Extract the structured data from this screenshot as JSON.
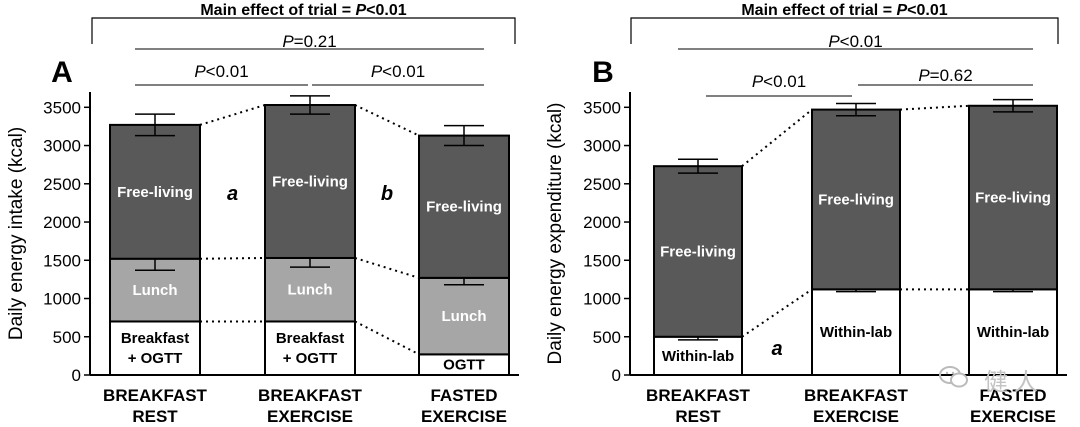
{
  "chart_data": [
    {
      "type": "bar",
      "panel_label": "A",
      "ylabel": "Daily energy intake (kcal)",
      "ylim": [
        0,
        3700
      ],
      "yticks": [
        0,
        500,
        1000,
        1500,
        2000,
        2500,
        3000,
        3500
      ],
      "categories": [
        [
          "BREAKFAST",
          "REST"
        ],
        [
          "BREAKFAST",
          "EXERCISE"
        ],
        [
          "FASTED",
          "EXERCISE"
        ]
      ],
      "stack": [
        {
          "values": [
            700,
            700,
            270
          ],
          "labels": [
            [
              "Breakfast",
              "+ OGTT"
            ],
            [
              "Breakfast",
              "+ OGTT"
            ],
            [
              "OGTT"
            ]
          ],
          "color": "#ffffff",
          "text_color": "#000000"
        },
        {
          "values": [
            820,
            830,
            1000
          ],
          "labels": [
            [
              "Lunch"
            ],
            [
              "Lunch"
            ],
            [
              "Lunch"
            ]
          ],
          "color": "#a6a6a6",
          "text_color": "#ffffff",
          "error": [
            150,
            120,
            90
          ]
        },
        {
          "values": [
            1750,
            2000,
            1860
          ],
          "labels": [
            [
              "Free-living"
            ],
            [
              "Free-living"
            ],
            [
              "Free-living"
            ]
          ],
          "color": "#595959",
          "text_color": "#ffffff",
          "error": [
            140,
            120,
            130
          ]
        }
      ],
      "letters": [
        {
          "text": "a",
          "after_bar": 0
        },
        {
          "text": "b",
          "after_bar": 1
        }
      ],
      "significance": {
        "main": {
          "prefix": "Main effect of trial = ",
          "p": "P",
          "suffix": "<0.01"
        },
        "pairs": [
          {
            "from": 0,
            "to": 2,
            "p": "P",
            "suffix": "=0.21"
          },
          {
            "from": 0,
            "to": 1,
            "p": "P",
            "suffix": "<0.01"
          },
          {
            "from": 1,
            "to": 2,
            "p": "P",
            "suffix": "<0.01"
          }
        ]
      }
    },
    {
      "type": "bar",
      "panel_label": "B",
      "ylabel": "Daily energy expenditure (kcal)",
      "ylim": [
        0,
        3700
      ],
      "yticks": [
        0,
        500,
        1000,
        1500,
        2000,
        2500,
        3000,
        3500
      ],
      "categories": [
        [
          "BREAKFAST",
          "REST"
        ],
        [
          "BREAKFAST",
          "EXERCISE"
        ],
        [
          "FASTED",
          "EXERCISE"
        ]
      ],
      "stack": [
        {
          "values": [
            500,
            1120,
            1120
          ],
          "labels": [
            [
              "Within-lab"
            ],
            [
              "Within-lab"
            ],
            [
              "Within-lab"
            ]
          ],
          "color": "#ffffff",
          "text_color": "#000000",
          "error": [
            40,
            30,
            30
          ]
        },
        {
          "values": [
            2230,
            2350,
            2400
          ],
          "labels": [
            [
              "Free-living"
            ],
            [
              "Free-living"
            ],
            [
              "Free-living"
            ]
          ],
          "color": "#595959",
          "text_color": "#ffffff",
          "error": [
            90,
            80,
            80
          ]
        }
      ],
      "letters": [
        {
          "text": "a",
          "after_bar": 0
        }
      ],
      "significance": {
        "main": {
          "prefix": "Main effect of trial = ",
          "p": "P",
          "suffix": "<0.01"
        },
        "pairs": [
          {
            "from": 0,
            "to": 2,
            "p": "P",
            "suffix": "<0.01"
          },
          {
            "from": 0,
            "to": 1,
            "p": "P",
            "suffix": "<0.01"
          },
          {
            "from": 1,
            "to": 2,
            "p": "P",
            "suffix": "=0.62"
          }
        ]
      }
    }
  ],
  "watermark": {
    "text": "健人",
    "icon": "wechat-icon"
  }
}
